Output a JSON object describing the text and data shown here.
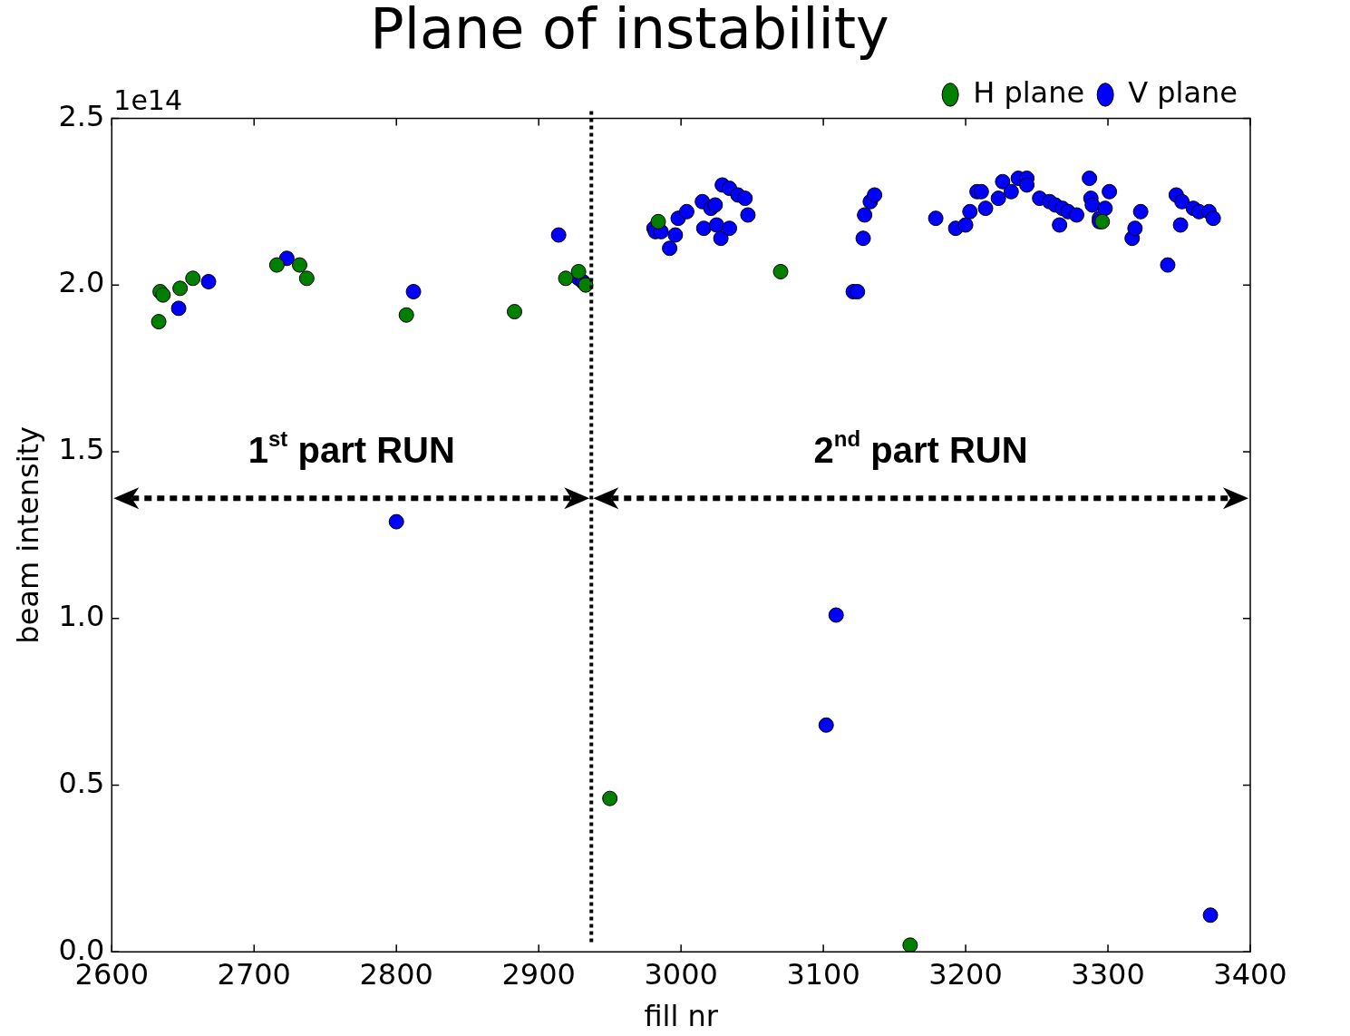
{
  "chart_data": {
    "type": "scatter",
    "title": "Plane of instability",
    "xlabel": "fill nr",
    "ylabel": "beam intensity",
    "xlim": [
      2600,
      3400
    ],
    "xticks": [
      2600,
      2700,
      2800,
      2900,
      3000,
      3100,
      3200,
      3300,
      3400
    ],
    "ylim": [
      0,
      2.5
    ],
    "yticks": [
      {
        "value": 0,
        "label": "0.0"
      },
      0.5,
      {
        "value": 1,
        "label": "1.0"
      },
      1.5,
      {
        "value": 2,
        "label": "2.0"
      },
      2.5
    ],
    "grid": false,
    "legend": "top right",
    "marker": "circle",
    "ref_lines": [
      {
        "axis": "x",
        "value": 2937,
        "line_style": "dotted",
        "color": "#000000"
      }
    ],
    "annotations": [
      "1e14",
      "1$^{st}$ part RUN",
      "2$^{nd}$ part RUN"
    ],
    "series": [
      {
        "name": "H plane",
        "color": "#007f00",
        "x": [
          2633,
          2634,
          2636,
          2648,
          2657,
          2716,
          2732,
          2737,
          2807,
          2883,
          2919,
          2928,
          2933,
          2950,
          2984,
          3070,
          3161,
          3296
        ],
        "values": [
          1.89,
          1.98,
          1.97,
          1.99,
          2.02,
          2.06,
          2.06,
          2.02,
          1.91,
          1.92,
          2.02,
          2.04,
          2.0,
          0.46,
          2.19,
          2.04,
          0.02,
          2.19
        ]
      },
      {
        "name": "V plane",
        "color": "#0000ff",
        "x": [
          2647,
          2668,
          2723,
          2800,
          2812,
          2914,
          2928,
          2931,
          2981,
          2982,
          2986,
          2992,
          2996,
          2998,
          3004,
          3015,
          3016,
          3021,
          3024,
          3025,
          3028,
          3034,
          3029,
          3034,
          3040,
          3045,
          3047,
          3102,
          3109,
          3121,
          3124,
          3128,
          3129,
          3133,
          3136,
          3179,
          3193,
          3200,
          3203,
          3208,
          3211,
          3214,
          3223,
          3226,
          3232,
          3237,
          3243,
          3243,
          3252,
          3259,
          3263,
          3266,
          3268,
          3272,
          3278,
          3287,
          3288,
          3289,
          3294,
          3298,
          3301,
          3294,
          3317,
          3319,
          3323,
          3342,
          3348,
          3351,
          3352,
          3360,
          3364,
          3371,
          3374,
          3372
        ],
        "values": [
          1.93,
          2.01,
          2.08,
          1.29,
          1.98,
          2.15,
          2.02,
          2.01,
          2.17,
          2.16,
          2.16,
          2.11,
          2.15,
          2.2,
          2.22,
          2.25,
          2.17,
          2.23,
          2.24,
          2.18,
          2.14,
          2.17,
          2.3,
          2.29,
          2.27,
          2.26,
          2.21,
          0.68,
          1.01,
          1.98,
          1.98,
          2.14,
          2.21,
          2.25,
          2.27,
          2.2,
          2.17,
          2.18,
          2.22,
          2.28,
          2.28,
          2.23,
          2.26,
          2.31,
          2.28,
          2.32,
          2.32,
          2.3,
          2.26,
          2.25,
          2.24,
          2.18,
          2.23,
          2.22,
          2.21,
          2.32,
          2.26,
          2.24,
          2.2,
          2.23,
          2.28,
          2.19,
          2.14,
          2.17,
          2.22,
          2.06,
          2.27,
          2.18,
          2.25,
          2.23,
          2.22,
          2.22,
          2.2,
          0.11
        ]
      }
    ]
  }
}
